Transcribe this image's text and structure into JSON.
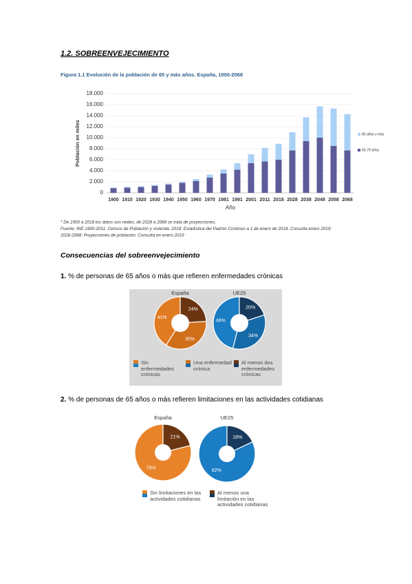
{
  "heading": "1.2. SOBREENVEJECIMIENTO",
  "subheading": "Consecuencias del sobreenvejecimiento",
  "items": [
    {
      "number": "1.",
      "text": "% de personas de 65 años o más que refieren enfermedades crónicas"
    },
    {
      "number": "2.",
      "text": "% de personas de 65 años o más refieren limitaciones en las actividades cotidianas"
    }
  ],
  "chart_data": [
    {
      "type": "bar",
      "stacked": true,
      "title": "Figura 1.1  Evolución de la población de 65 y más años. España, 1900-2068",
      "x_label": "Año",
      "y_label": "Población en miles",
      "categories": [
        "1900",
        "1910",
        "1920",
        "1930",
        "1940",
        "1950",
        "1960",
        "1970",
        "1981",
        "1991",
        "2001",
        "2011",
        "2018",
        "2028",
        "2038",
        "2048",
        "2058",
        "2068"
      ],
      "series": [
        {
          "name": "65-79 años",
          "color": "#5d5b9a",
          "values": [
            850,
            950,
            1050,
            1250,
            1490,
            1800,
            2150,
            2750,
            3500,
            4200,
            5400,
            5700,
            6000,
            7700,
            9400,
            10000,
            8500,
            7700
          ]
        },
        {
          "name": "80 años y más",
          "color": "#a9d1f5",
          "values": [
            115,
            120,
            150,
            190,
            200,
            220,
            350,
            550,
            740,
            1170,
            1600,
            2450,
            2900,
            3300,
            4300,
            5700,
            6800,
            6600
          ]
        }
      ],
      "ylim": [
        0,
        18000
      ],
      "yticks": [
        0,
        {
          "value": 2000,
          "label": "2.000"
        },
        {
          "value": 4000,
          "label": "4.000"
        },
        {
          "value": 6000,
          "label": "6.000"
        },
        {
          "value": 8000,
          "label": "8.000"
        },
        {
          "value": 10000,
          "label": "10.000"
        },
        {
          "value": 12000,
          "label": "12.000"
        },
        {
          "value": 14000,
          "label": "14.000"
        },
        {
          "value": 16000,
          "label": "16.000"
        },
        {
          "value": 18000,
          "label": "18.000"
        }
      ],
      "grid": true,
      "notes": [
        "* De 1900 a 2018 los datos son reales; de 2028 a 2068 se trata de proyecciones.",
        "Fuente: INE:1900-2011: Censos de Población y vivienda. 2018: Estadística del Padrón Continuo a 1 de enero de 2018. Consulta enero 2019;",
        "2028-2068: Proyecciones de población. Consulta en enero 2019"
      ]
    },
    {
      "type": "donut",
      "background": "#d9d9d9",
      "categories": [
        "Sin enfermedades crónicas",
        "Una enfermedad crónica",
        "Al menos dos enfermedades crónicas"
      ],
      "pies": [
        {
          "title": "España",
          "values": [
            41,
            35,
            24
          ],
          "value_labels": [
            "41%",
            "35%",
            "24%"
          ],
          "colors": [
            "#e07b22",
            "#cf6f1a",
            "#6b3511"
          ]
        },
        {
          "title": "UE25",
          "values": [
            46,
            34,
            20
          ],
          "value_labels": [
            "46%",
            "34%",
            "20%"
          ],
          "colors": [
            "#1b7dc4",
            "#176aa8",
            "#173a5e"
          ]
        }
      ]
    },
    {
      "type": "donut",
      "background": "#ffffff",
      "categories": [
        "Sin limitaciones en las actividades cotidianas",
        "Al menos una limitación en las actividades cotidianas"
      ],
      "pies": [
        {
          "title": "España",
          "values": [
            79,
            21
          ],
          "value_labels": [
            "79%",
            "21%"
          ],
          "colors": [
            "#e9832a",
            "#6b3511"
          ]
        },
        {
          "title": "UE25",
          "values": [
            82,
            18
          ],
          "value_labels": [
            "82%",
            "18%"
          ],
          "colors": [
            "#1b7dc4",
            "#173a5e"
          ]
        }
      ]
    }
  ]
}
